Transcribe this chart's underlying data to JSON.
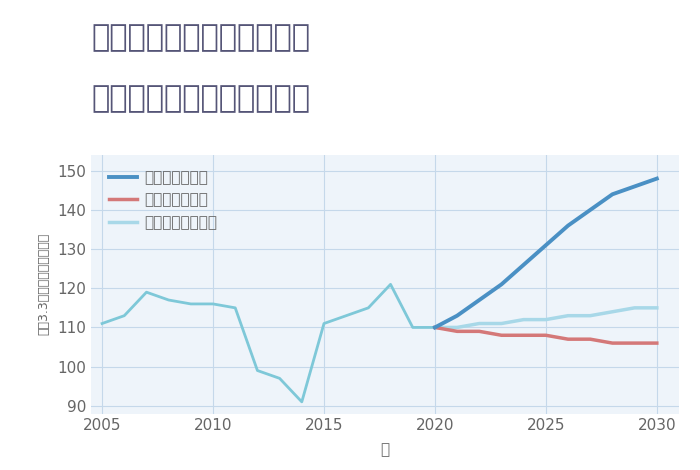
{
  "title_line1": "愛知県半田市亀崎北浦町の",
  "title_line2": "中古マンションの価格推移",
  "xlabel": "年",
  "ylabel_parts": [
    "坪（3.3㎡）",
    "単価（万円）"
  ],
  "ylim": [
    88,
    154
  ],
  "xlim": [
    2004.5,
    2031
  ],
  "yticks": [
    90,
    100,
    110,
    120,
    130,
    140,
    150
  ],
  "xticks": [
    2005,
    2010,
    2015,
    2020,
    2025,
    2030
  ],
  "bg_color": "#eef4fa",
  "grid_color": "#c5d8ea",
  "historical_x": [
    2005,
    2006,
    2007,
    2008,
    2009,
    2010,
    2011,
    2012,
    2013,
    2014,
    2015,
    2016,
    2017,
    2018,
    2019,
    2020
  ],
  "historical_y": [
    111,
    113,
    119,
    117,
    116,
    116,
    115,
    99,
    97,
    91,
    111,
    113,
    115,
    121,
    110,
    110
  ],
  "good_x": [
    2020,
    2021,
    2022,
    2023,
    2024,
    2025,
    2026,
    2027,
    2028,
    2029,
    2030
  ],
  "good_y": [
    110,
    113,
    117,
    121,
    126,
    131,
    136,
    140,
    144,
    146,
    148
  ],
  "bad_x": [
    2020,
    2021,
    2022,
    2023,
    2024,
    2025,
    2026,
    2027,
    2028,
    2029,
    2030
  ],
  "bad_y": [
    110,
    109,
    109,
    108,
    108,
    108,
    107,
    107,
    106,
    106,
    106
  ],
  "normal_x": [
    2020,
    2021,
    2022,
    2023,
    2024,
    2025,
    2026,
    2027,
    2028,
    2029,
    2030
  ],
  "normal_y": [
    110,
    110,
    111,
    111,
    112,
    112,
    113,
    113,
    114,
    115,
    115
  ],
  "color_historical": "#7ec8d8",
  "color_good": "#4a90c4",
  "color_bad": "#d47878",
  "color_normal": "#a8d8e8",
  "legend_labels": [
    "グッドシナリオ",
    "バッドシナリオ",
    "ノーマルシナリオ"
  ],
  "title_color": "#555577",
  "title_fontsize": 22,
  "axis_fontsize": 11,
  "tick_color": "#666666",
  "legend_fontsize": 11
}
